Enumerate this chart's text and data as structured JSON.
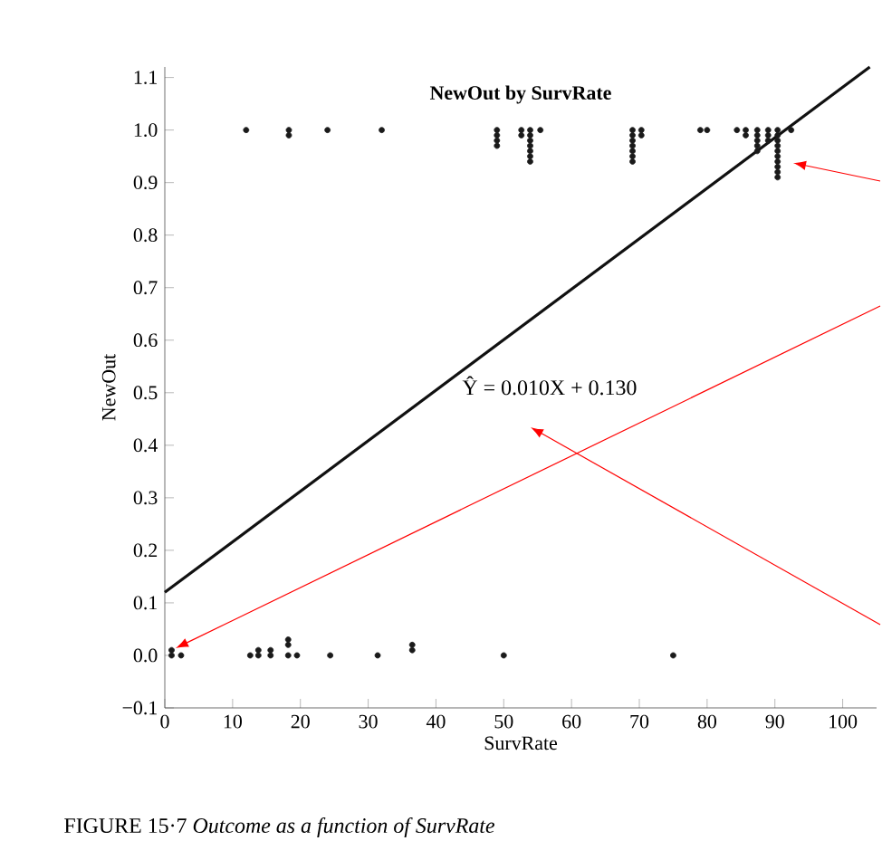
{
  "chart_data": {
    "type": "scatter",
    "title": "NewOut by SurvRate",
    "xlabel": "SurvRate",
    "ylabel": "NewOut",
    "xlim": [
      0,
      105
    ],
    "ylim": [
      -0.1,
      1.12
    ],
    "xticks": [
      0,
      10,
      20,
      30,
      40,
      50,
      60,
      70,
      80,
      90,
      100
    ],
    "yticks": [
      {
        "value": -0.1,
        "label": "−0.1"
      },
      {
        "value": 0,
        "label": "0.0"
      },
      {
        "value": 0.1,
        "label": "0.1"
      },
      {
        "value": 0.2,
        "label": "0.2"
      },
      {
        "value": 0.3,
        "label": "0.3"
      },
      {
        "value": 0.4,
        "label": "0.4"
      },
      {
        "value": 0.5,
        "label": "0.5"
      },
      {
        "value": 0.6,
        "label": "0.6"
      },
      {
        "value": 0.7,
        "label": "0.7"
      },
      {
        "value": 0.8,
        "label": "0.8"
      },
      {
        "value": 0.9,
        "label": "0.9"
      },
      {
        "value": 1.0,
        "label": "1.0"
      },
      {
        "value": 1.1,
        "label": "1.1"
      }
    ],
    "grid": false,
    "series": [
      {
        "color": "#1a1a1a",
        "marker": "circle",
        "x": [
          12,
          18.3,
          18.3,
          24,
          32,
          49,
          49,
          49,
          49,
          52.6,
          52.6,
          53.9,
          53.9,
          53.9,
          53.9,
          53.9,
          53.9,
          53.9,
          55.4,
          69,
          69,
          69,
          69,
          69,
          69,
          69,
          70.3,
          70.3,
          79,
          80,
          84.4,
          85.7,
          85.7,
          87.4,
          87.4,
          87.4,
          87.4,
          87.4,
          89,
          89,
          89,
          90.4,
          90.4,
          90.4,
          90.4,
          90.4,
          90.4,
          90.4,
          90.4,
          90.4,
          90.4,
          92.4,
          1,
          1,
          2.4,
          12.6,
          13.8,
          13.8,
          15.6,
          15.6,
          18.2,
          18.2,
          18.2,
          19.5,
          24.4,
          31.4,
          36.5,
          36.5,
          50,
          75
        ],
        "values": [
          1.0,
          1.0,
          0.99,
          1.0,
          1.0,
          1.0,
          0.99,
          0.98,
          0.97,
          1.0,
          0.99,
          1.0,
          0.99,
          0.98,
          0.97,
          0.96,
          0.95,
          0.94,
          1.0,
          1.0,
          0.99,
          0.98,
          0.97,
          0.96,
          0.95,
          0.94,
          1.0,
          0.99,
          1.0,
          1.0,
          1.0,
          1.0,
          0.99,
          1.0,
          0.99,
          0.98,
          0.97,
          0.96,
          1.0,
          0.99,
          0.98,
          1.0,
          0.99,
          0.98,
          0.97,
          0.96,
          0.95,
          0.94,
          0.93,
          0.92,
          0.91,
          1.0,
          0.01,
          0,
          0,
          0,
          0.01,
          0,
          0.01,
          0,
          0.03,
          0.02,
          0,
          0,
          0,
          0,
          0.02,
          0.01,
          0,
          0
        ]
      },
      {
        "type": "line",
        "color": "#111111",
        "x": [
          0,
          104
        ],
        "values": [
          0.12,
          1.12
        ],
        "marker": "none"
      }
    ],
    "annotations": [
      "FIGURE 15·7 *Outcome as a function of SurvRate*",
      "Ŷ = 0.010X + 0.130"
    ]
  }
}
